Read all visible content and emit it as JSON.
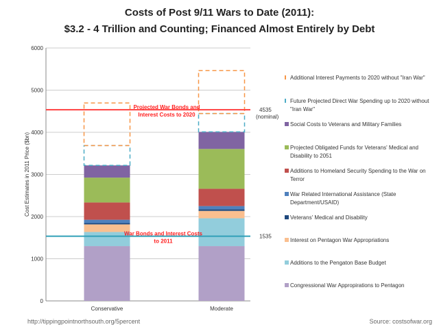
{
  "chart_data": {
    "type": "bar",
    "stacked": true,
    "title": [
      "Costs of Post 9/11 Wars to Date (2011):",
      "$3.2 - 4 Trillion and Counting; Financed Almost Entirely by Debt"
    ],
    "ylabel": "Cost Estimates in 2011 Price ($bn)",
    "ylim": [
      0,
      6000
    ],
    "yticks": [
      0,
      1000,
      2000,
      3000,
      4000,
      5000,
      6000
    ],
    "categories": [
      "Conservative",
      "Moderate"
    ],
    "series": [
      {
        "name": "Congressional War Appropirations to Pentagon",
        "color": "#b1a0c7",
        "values": [
          1300,
          1300
        ]
      },
      {
        "name": "Additions to the Pengaton Base Budget",
        "color": "#92cddc",
        "values": [
          335,
          660
        ]
      },
      {
        "name": "Interest on Pentagon War Appropriations",
        "color": "#fabf8f",
        "values": [
          180,
          175
        ]
      },
      {
        "name": "Veterans' Medical and Disability",
        "color": "#1f497d",
        "values": [
          30,
          40
        ]
      },
      {
        "name": "War Related International Assistance (State Department/USAID)",
        "color": "#4f81bd",
        "values": [
          80,
          75
        ]
      },
      {
        "name": "Additions to Homeland Security Spending to the War on Terror",
        "color": "#c0504d",
        "values": [
          410,
          410
        ]
      },
      {
        "name": "Projected Obligated Funds for Veterans' Medical and Disability to 2051",
        "color": "#9bbb59",
        "values": [
          590,
          945
        ]
      },
      {
        "name": "Social Costs to Veterans and Military Families",
        "color": "#8064a2",
        "values": [
          290,
          405
        ]
      },
      {
        "name": "Future Projected Direct War Spending up to 2020 without \"Iran War\"",
        "color": "#4bacc6",
        "dashed": true,
        "values": [
          470,
          435
        ]
      },
      {
        "name": "Additional Interest Payments to 2020 without \"Iran War\"",
        "color": "#f79646",
        "dashed": true,
        "values": [
          1010,
          1020
        ]
      }
    ],
    "reference_lines": [
      {
        "value": 4535,
        "label": "Projected War Bonds and Interest Costs to 2020",
        "value_label": "4535",
        "note": "(nominal)",
        "color": "#ff4040"
      },
      {
        "value": 1535,
        "label": "War Bonds and Interest Costs to 2011",
        "value_label": "1535",
        "note": "",
        "color": "#31a0b8"
      }
    ]
  },
  "footer": {
    "url": "http://tippingpointnorthsouth.org/5percent",
    "source": "Source: costsofwar.org"
  }
}
